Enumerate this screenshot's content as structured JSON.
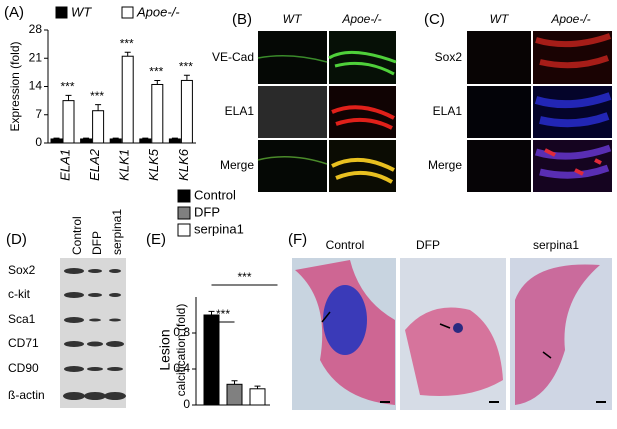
{
  "figure": {
    "panels": [
      "(A)",
      "(B)",
      "(C)",
      "(D)",
      "(E)",
      "(F)"
    ]
  },
  "chart_data": [
    {
      "type": "bar",
      "y_label": "Expression (fold)",
      "categories": [
        "ELA1",
        "ELA2",
        "KLK1",
        "KLK5",
        "KLK6"
      ],
      "series": [
        {
          "name": "WT",
          "color": "#000000",
          "values": [
            1,
            1,
            1,
            1,
            1
          ],
          "errors": [
            0.2,
            0.2,
            0.2,
            0.2,
            0.2
          ]
        },
        {
          "name": "Apoe-/-",
          "color": "#ffffff",
          "values": [
            10.5,
            8,
            21.5,
            14.5,
            15.5
          ],
          "errors": [
            1.3,
            1.5,
            1,
            1,
            1.3
          ]
        }
      ],
      "significance": [
        "***",
        "***",
        "***",
        "***",
        "***"
      ],
      "ylim": [
        0,
        28
      ],
      "yticks": [
        0,
        7,
        14,
        21,
        28
      ]
    },
    {
      "type": "bar",
      "y_label": [
        "Lesion",
        "calcification (fold)"
      ],
      "series": [
        {
          "name": "Control",
          "color": "#000000",
          "values": [
            1.0
          ],
          "errors": [
            0.04
          ]
        },
        {
          "name": "DFP",
          "color": "#808080",
          "values": [
            0.23
          ],
          "errors": [
            0.04
          ]
        },
        {
          "name": "serpina1",
          "color": "#ffffff",
          "values": [
            0.18
          ],
          "errors": [
            0.03
          ]
        }
      ],
      "significance": [
        "***",
        "***"
      ],
      "ylim": [
        0,
        1.2
      ],
      "yticks": [
        0,
        0.4,
        0.8
      ]
    }
  ],
  "panel_b": {
    "columns": [
      "WT",
      "Apoe-/-"
    ],
    "rows": [
      "VE-Cad",
      "ELA1",
      "Merge"
    ]
  },
  "panel_c": {
    "columns": [
      "WT",
      "Apoe-/-"
    ],
    "rows": [
      "Sox2",
      "ELA1",
      "Merge"
    ]
  },
  "panel_d": {
    "columns": [
      "Control",
      "DFP",
      "serpina1"
    ],
    "rows": [
      "Sox2",
      "c-kit",
      "Sca1",
      "CD71",
      "CD90",
      "ß-actin"
    ]
  },
  "panel_f": {
    "columns": [
      "Control",
      "DFP",
      "serpina1"
    ]
  }
}
